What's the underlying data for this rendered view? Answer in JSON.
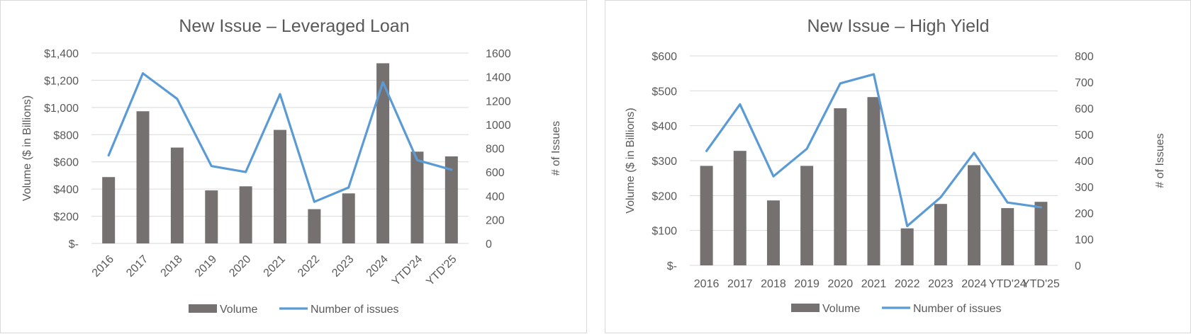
{
  "chart_data": [
    {
      "type": "bar",
      "title": "New Issue – Leveraged Loan",
      "categories": [
        "2016",
        "2017",
        "2018",
        "2019",
        "2020",
        "2021",
        "2022",
        "2023",
        "2024",
        "YTD'24",
        "YTD'25"
      ],
      "ylabel": "Volume ($ in Billions)",
      "y2label": "# of Issues",
      "ylim": [
        0,
        1400
      ],
      "y2lim": [
        0,
        1600
      ],
      "y_ticks": [
        "$-",
        "$200",
        "$400",
        "$600",
        "$800",
        "$1,000",
        "$1,200",
        "$1,400"
      ],
      "y2_ticks": [
        "0",
        "200",
        "400",
        "600",
        "800",
        "1000",
        "1200",
        "1400",
        "1600"
      ],
      "x_tick_rotation": "angled",
      "grid": true,
      "legend_position": "bottom",
      "series": [
        {
          "name": "Volume",
          "type": "bar",
          "axis": "left",
          "color": "#767171",
          "values": [
            488,
            972,
            705,
            390,
            420,
            835,
            252,
            368,
            1325,
            675,
            640
          ]
        },
        {
          "name": "Number of issues",
          "type": "line",
          "axis": "right",
          "color": "#5b9bd5",
          "values": [
            740,
            1430,
            1215,
            650,
            600,
            1255,
            350,
            470,
            1355,
            700,
            620
          ]
        }
      ]
    },
    {
      "type": "bar",
      "title": "New Issue – High Yield",
      "categories": [
        "2016",
        "2017",
        "2018",
        "2019",
        "2020",
        "2021",
        "2022",
        "2023",
        "2024",
        "YTD'24",
        "YTD'25"
      ],
      "ylabel": "Volume ($ in Billions)",
      "y2label": "# of Issues",
      "ylim": [
        0,
        600
      ],
      "y2lim": [
        0,
        800
      ],
      "y_ticks": [
        "$-",
        "$100",
        "$200",
        "$300",
        "$400",
        "$500",
        "$600"
      ],
      "y2_ticks": [
        "0",
        "100",
        "200",
        "300",
        "400",
        "500",
        "600",
        "700",
        "800"
      ],
      "x_tick_rotation": "horizontal",
      "grid": true,
      "legend_position": "bottom",
      "series": [
        {
          "name": "Volume",
          "type": "bar",
          "axis": "left",
          "color": "#767171",
          "values": [
            285,
            328,
            186,
            285,
            450,
            482,
            106,
            176,
            287,
            164,
            182
          ]
        },
        {
          "name": "Number of issues",
          "type": "line",
          "axis": "right",
          "color": "#5b9bd5",
          "values": [
            437,
            615,
            340,
            445,
            695,
            730,
            150,
            260,
            430,
            240,
            222
          ]
        }
      ]
    }
  ]
}
